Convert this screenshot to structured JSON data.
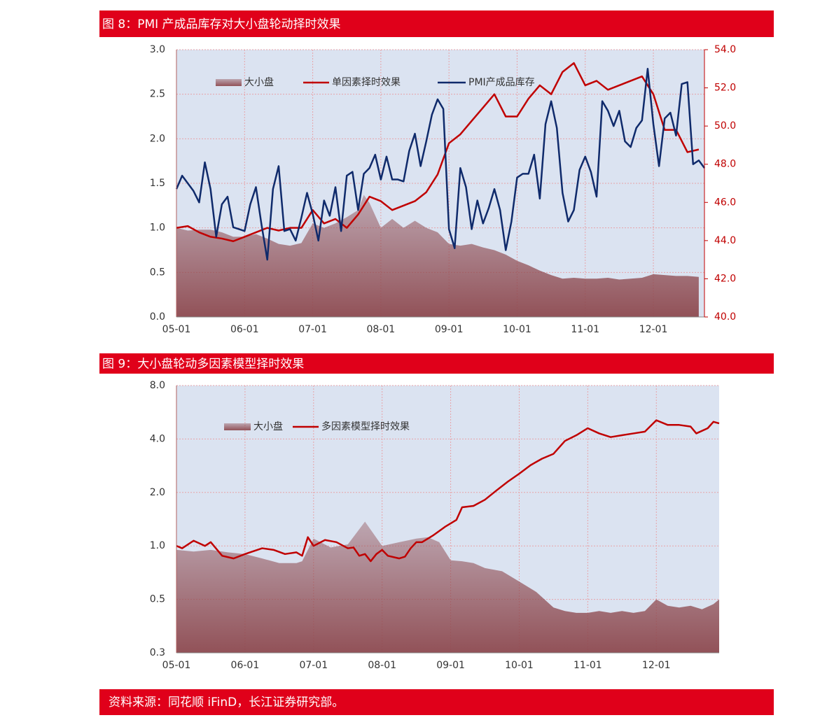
{
  "chart_data": [
    {
      "type": "line",
      "title": "图 8：PMI 产成品库存对大小盘轮动择时效果",
      "xlim": [
        0,
        93
      ],
      "xticks": [
        {
          "value": 0,
          "label": "05-01"
        },
        {
          "value": 12,
          "label": "06-01"
        },
        {
          "value": 24,
          "label": "07-01"
        },
        {
          "value": 36,
          "label": "08-01"
        },
        {
          "value": 48,
          "label": "09-01"
        },
        {
          "value": 60,
          "label": "10-01"
        },
        {
          "value": 72,
          "label": "11-01"
        },
        {
          "value": 84,
          "label": "12-01"
        }
      ],
      "ylim": [
        0,
        3
      ],
      "yticks": [
        {
          "value": 0,
          "label": "0.0"
        },
        0.5,
        {
          "value": 1,
          "label": "1.0"
        },
        1.5,
        {
          "value": 2,
          "label": "2.0"
        },
        2.5,
        {
          "value": 3,
          "label": "3.0"
        }
      ],
      "y2lim": [
        40,
        54
      ],
      "y2ticks": [
        {
          "value": 40,
          "label": "40.0"
        },
        {
          "value": 42,
          "label": "42.0"
        },
        {
          "value": 44,
          "label": "44.0"
        },
        {
          "value": 46,
          "label": "46.0"
        },
        {
          "value": 48,
          "label": "48.0"
        },
        {
          "value": 50,
          "label": "50.0"
        },
        {
          "value": 52,
          "label": "52.0"
        },
        {
          "value": 54,
          "label": "54.0"
        }
      ],
      "grid": true,
      "ylog": false,
      "series": [
        {
          "name": "大小盘",
          "type": "area",
          "color": "#8e4a50",
          "x": [
            0,
            2,
            4,
            6,
            8,
            10,
            12,
            14,
            16,
            18,
            20,
            22,
            24,
            26,
            28,
            30,
            32,
            33,
            34,
            36,
            38,
            40,
            42,
            44,
            46,
            48,
            50,
            52,
            54,
            56,
            58,
            60,
            62,
            64,
            66,
            68,
            70,
            72,
            74,
            76,
            78,
            80,
            82,
            84,
            86,
            88,
            90,
            92
          ],
          "values": [
            1.0,
            0.97,
            0.98,
            0.98,
            0.95,
            0.9,
            0.9,
            0.93,
            0.88,
            0.82,
            0.8,
            0.83,
            1.05,
            1.0,
            1.05,
            1.12,
            1.2,
            1.37,
            1.28,
            1.0,
            1.1,
            1.0,
            1.08,
            1.0,
            0.95,
            0.82,
            0.8,
            0.82,
            0.78,
            0.75,
            0.7,
            0.63,
            0.58,
            0.52,
            0.47,
            0.43,
            0.44,
            0.43,
            0.43,
            0.44,
            0.42,
            0.43,
            0.44,
            0.48,
            0.47,
            0.46,
            0.46,
            0.45
          ]
        },
        {
          "name": "单因素择时效果",
          "type": "line",
          "color": "#c00000",
          "x": [
            0,
            2,
            4,
            6,
            8,
            10,
            12,
            14,
            16,
            18,
            20,
            22,
            24,
            26,
            28,
            30,
            32,
            34,
            36,
            38,
            40,
            42,
            44,
            46,
            48,
            50,
            52,
            54,
            56,
            58,
            60,
            62,
            64,
            66,
            68,
            70,
            72,
            74,
            76,
            78,
            80,
            82,
            84,
            86,
            88,
            90,
            92
          ],
          "values": [
            1.0,
            1.02,
            0.95,
            0.9,
            0.88,
            0.85,
            0.9,
            0.95,
            1.0,
            0.97,
            1.0,
            1.0,
            1.2,
            1.05,
            1.1,
            1.0,
            1.15,
            1.35,
            1.3,
            1.2,
            1.25,
            1.3,
            1.4,
            1.6,
            1.95,
            2.05,
            2.2,
            2.35,
            2.5,
            2.25,
            2.25,
            2.45,
            2.6,
            2.5,
            2.75,
            2.85,
            2.6,
            2.65,
            2.55,
            2.6,
            2.65,
            2.7,
            2.5,
            2.1,
            2.1,
            1.85,
            1.88
          ]
        },
        {
          "name": "PMI产成品库存",
          "type": "line",
          "axis": "y2",
          "color": "#0f2a6b",
          "x": [
            0,
            1,
            2,
            3,
            4,
            5,
            6,
            7,
            8,
            9,
            10,
            11,
            12,
            13,
            14,
            15,
            16,
            17,
            18,
            19,
            20,
            21,
            22,
            23,
            24,
            25,
            26,
            27,
            28,
            29,
            30,
            31,
            32,
            33,
            34,
            35,
            36,
            37,
            38,
            39,
            40,
            41,
            42,
            43,
            44,
            45,
            46,
            47,
            48,
            49,
            50,
            51,
            52,
            53,
            54,
            55,
            56,
            57,
            58,
            59,
            60,
            61,
            62,
            63,
            64,
            65,
            66,
            67,
            68,
            69,
            70,
            71,
            72,
            73,
            74,
            75,
            76,
            77,
            78,
            79,
            80,
            81,
            82,
            83,
            84,
            85,
            86,
            87,
            88,
            89,
            90,
            91,
            92,
            93
          ],
          "values": [
            46.7,
            47.4,
            47,
            46.6,
            46,
            48.1,
            46.7,
            44.2,
            45.9,
            46.3,
            44.7,
            44.6,
            44.5,
            45.9,
            46.8,
            44.8,
            43,
            46.7,
            47.9,
            44.5,
            44.6,
            44,
            45.2,
            46.5,
            45.4,
            44,
            46.1,
            45.3,
            46.8,
            44.5,
            47.4,
            47.6,
            45.6,
            47.5,
            47.8,
            48.5,
            47.2,
            48.4,
            47.2,
            47.2,
            47.1,
            48.7,
            49.6,
            47.9,
            49.2,
            50.6,
            51.4,
            50.9,
            44.6,
            43.6,
            47.8,
            46.8,
            44.6,
            46.1,
            44.9,
            45.7,
            46.7,
            45.6,
            43.5,
            45,
            47.3,
            47.5,
            47.5,
            48.5,
            46.2,
            50.1,
            51.3,
            49.9,
            46.5,
            45,
            45.6,
            47.7,
            48.4,
            47.6,
            46.3,
            51.3,
            50.8,
            50,
            50.8,
            49.2,
            48.9,
            49.9,
            50.3,
            53,
            50.1,
            47.9,
            50.4,
            50.7,
            49.5,
            52.2,
            52.3,
            48,
            48.2,
            47.8
          ]
        }
      ]
    },
    {
      "type": "line",
      "title": "图 9：大小盘轮动多因素模型择时效果",
      "xlim": [
        0,
        95
      ],
      "xticks": [
        {
          "value": 0,
          "label": "05-01"
        },
        {
          "value": 12,
          "label": "06-01"
        },
        {
          "value": 24,
          "label": "07-01"
        },
        {
          "value": 36,
          "label": "08-01"
        },
        {
          "value": 48,
          "label": "09-01"
        },
        {
          "value": 60,
          "label": "10-01"
        },
        {
          "value": 72,
          "label": "11-01"
        },
        {
          "value": 84,
          "label": "12-01"
        }
      ],
      "ylim": [
        0.25,
        8
      ],
      "yticks": [
        {
          "value": 0.25,
          "label": "0.3"
        },
        0.5,
        {
          "value": 1,
          "label": "1.0"
        },
        {
          "value": 2,
          "label": "2.0"
        },
        {
          "value": 4,
          "label": "4.0"
        },
        {
          "value": 8,
          "label": "8.0"
        }
      ],
      "grid": true,
      "ylog": true,
      "series": [
        {
          "name": "大小盘",
          "type": "area",
          "color": "#8e4a50",
          "x": [
            0,
            3,
            6,
            9,
            12,
            15,
            18,
            21,
            22,
            24,
            27,
            30,
            33,
            36,
            39,
            42,
            44,
            46,
            48,
            50,
            52,
            54,
            57,
            60,
            63,
            66,
            68,
            70,
            72,
            74,
            76,
            78,
            80,
            82,
            84,
            86,
            88,
            90,
            92,
            94,
            95
          ],
          "values": [
            0.95,
            0.93,
            0.95,
            0.92,
            0.9,
            0.85,
            0.8,
            0.8,
            0.82,
            1.1,
            0.98,
            1.02,
            1.37,
            1.0,
            1.05,
            1.1,
            1.12,
            1.05,
            0.83,
            0.82,
            0.8,
            0.75,
            0.72,
            0.63,
            0.55,
            0.45,
            0.43,
            0.42,
            0.42,
            0.43,
            0.42,
            0.43,
            0.42,
            0.43,
            0.5,
            0.46,
            0.45,
            0.46,
            0.44,
            0.47,
            0.5
          ]
        },
        {
          "name": "多因素模型择时效果",
          "type": "line",
          "color": "#c00000",
          "x": [
            0,
            1,
            3,
            5,
            6,
            8,
            10,
            12,
            15,
            17,
            19,
            21,
            22,
            23,
            24,
            26,
            28,
            30,
            31,
            32,
            33,
            34,
            35,
            36,
            37,
            39,
            40,
            41,
            42,
            43,
            45,
            47,
            49,
            50,
            52,
            54,
            56,
            58,
            60,
            62,
            64,
            66,
            68,
            70,
            72,
            74,
            76,
            78,
            80,
            82,
            84,
            86,
            88,
            90,
            91,
            93,
            94,
            95
          ],
          "values": [
            1.0,
            0.97,
            1.07,
            1.0,
            1.05,
            0.88,
            0.85,
            0.9,
            0.97,
            0.95,
            0.9,
            0.92,
            0.88,
            1.12,
            1.0,
            1.08,
            1.05,
            0.97,
            0.98,
            0.88,
            0.9,
            0.82,
            0.9,
            0.95,
            0.88,
            0.85,
            0.87,
            0.97,
            1.05,
            1.05,
            1.15,
            1.28,
            1.4,
            1.65,
            1.68,
            1.82,
            2.05,
            2.3,
            2.55,
            2.85,
            3.1,
            3.3,
            3.9,
            4.2,
            4.6,
            4.3,
            4.1,
            4.2,
            4.3,
            4.4,
            5.1,
            4.8,
            4.8,
            4.7,
            4.3,
            4.6,
            5.0,
            4.9
          ]
        }
      ]
    }
  ],
  "source": "资料来源：同花顺 iFinD，长江证券研究部。"
}
